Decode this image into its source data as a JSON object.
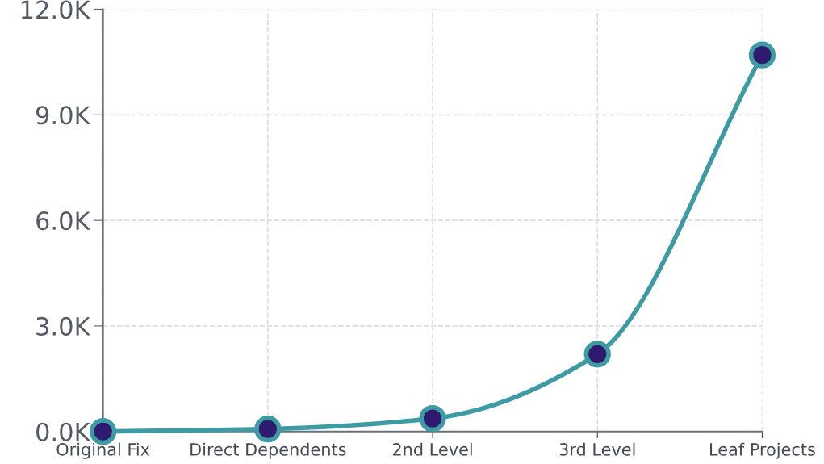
{
  "chart_data": {
    "type": "line",
    "categories": [
      "Original Fix",
      "Direct Dependents",
      "2nd Level",
      "3rd Level",
      "Leaf Projects"
    ],
    "series": [
      {
        "color": "#3e9ba3",
        "values": [
          0,
          70,
          370,
          2200,
          10700
        ]
      }
    ],
    "ylim": [
      0,
      12000
    ],
    "yticks": [
      {
        "value": 0,
        "label": "0.0K"
      },
      {
        "value": 3000,
        "label": "3.0K"
      },
      {
        "value": 6000,
        "label": "6.0K"
      },
      {
        "value": 9000,
        "label": "9.0K"
      },
      {
        "value": 12000,
        "label": "12.0K"
      }
    ],
    "grid": true,
    "marker": "circle",
    "line_style": "solid"
  }
}
